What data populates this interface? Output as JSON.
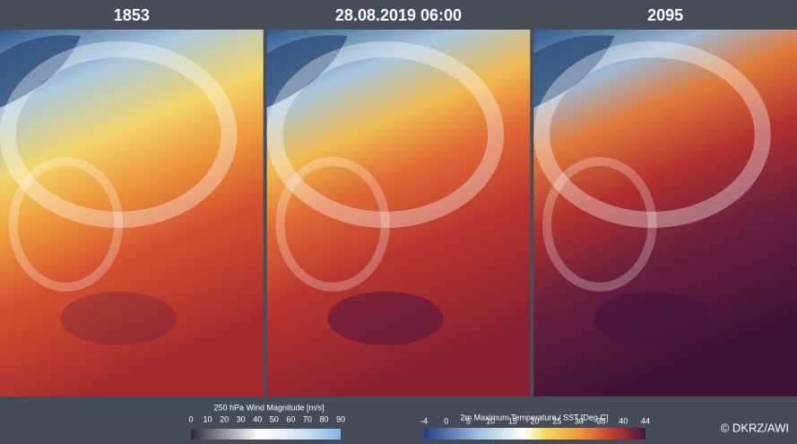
{
  "panels": [
    {
      "title": "1853"
    },
    {
      "title": "28.08.2019 06:00"
    },
    {
      "title": "2095"
    }
  ],
  "colorbars": [
    {
      "label": "250 hPa Wind Magnitude  [m/s]",
      "ticks": [
        0,
        10,
        20,
        30,
        40,
        50,
        60,
        70,
        80,
        90
      ]
    },
    {
      "label": "2m Maximum Temperature / SST  [Deg C]",
      "ticks": [
        -4,
        0,
        5,
        10,
        15,
        20,
        25,
        30,
        35,
        40,
        44
      ]
    }
  ],
  "copyright": "© DKRZ/AWI"
}
